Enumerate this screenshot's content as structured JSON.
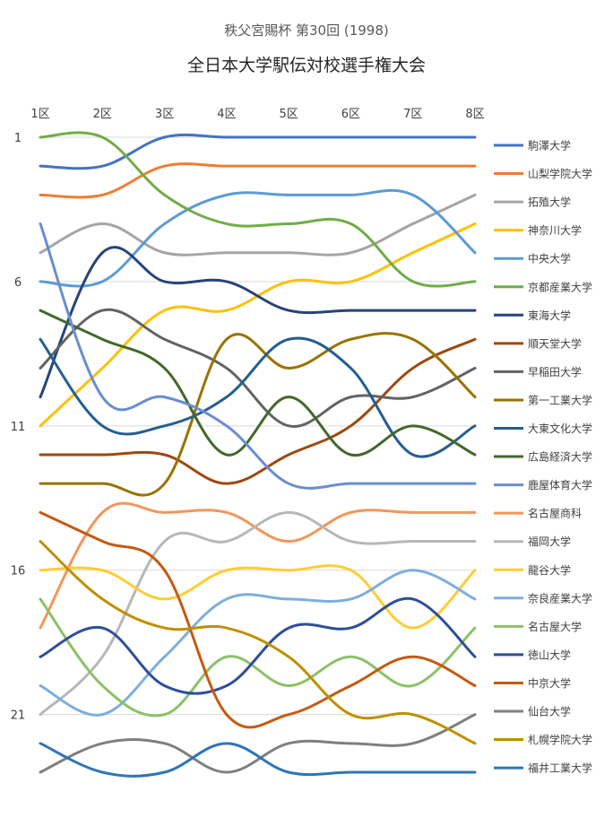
{
  "chart_data": {
    "type": "line",
    "subtitle": "秩父宮賜杯 第30回 (1998)",
    "title": "全日本大学駅伝対校選手権大会",
    "x": [
      "1区",
      "2区",
      "3区",
      "4区",
      "5区",
      "6区",
      "7区",
      "8区"
    ],
    "y_ticks": [
      "1",
      "6",
      "11",
      "16",
      "21"
    ],
    "y_reversed": true,
    "ylim": [
      1,
      23
    ],
    "legend_position": "right",
    "grid": true,
    "series": [
      {
        "name": "駒澤大学",
        "color": "#4472C4",
        "values": [
          2,
          2,
          1,
          1,
          1,
          1,
          1,
          1
        ]
      },
      {
        "name": "山梨学院大学",
        "color": "#ED7D31",
        "values": [
          3,
          3,
          2,
          2,
          2,
          2,
          2,
          2
        ]
      },
      {
        "name": "拓殖大学",
        "color": "#A5A5A5",
        "values": [
          5,
          4,
          5,
          5,
          5,
          5,
          4,
          3
        ]
      },
      {
        "name": "神奈川大学",
        "color": "#FFC000",
        "values": [
          11,
          9,
          7,
          7,
          6,
          6,
          5,
          4
        ]
      },
      {
        "name": "中央大学",
        "color": "#5B9BD5",
        "values": [
          6,
          6,
          4,
          3,
          3,
          3,
          3,
          5
        ]
      },
      {
        "name": "京都産業大学",
        "color": "#70AD47",
        "values": [
          1,
          1,
          3,
          4,
          4,
          4,
          6,
          6
        ]
      },
      {
        "name": "東海大学",
        "color": "#264478",
        "values": [
          10,
          5,
          6,
          6,
          7,
          7,
          7,
          7
        ]
      },
      {
        "name": "順天堂大学",
        "color": "#9E480E",
        "values": [
          12,
          12,
          12,
          13,
          12,
          11,
          9,
          8
        ]
      },
      {
        "name": "早稲田大学",
        "color": "#636363",
        "values": [
          9,
          7,
          8,
          9,
          11,
          10,
          10,
          9
        ]
      },
      {
        "name": "第一工業大学",
        "color": "#997300",
        "values": [
          13,
          13,
          13,
          8,
          9,
          8,
          8,
          10
        ]
      },
      {
        "name": "大東文化大学",
        "color": "#255E91",
        "values": [
          8,
          11,
          11,
          10,
          8,
          9,
          12,
          11
        ]
      },
      {
        "name": "広島経済大学",
        "color": "#43682B",
        "values": [
          7,
          8,
          9,
          12,
          10,
          12,
          11,
          12
        ]
      },
      {
        "name": "鹿屋体育大学",
        "color": "#698ED0",
        "values": [
          4,
          10,
          10,
          11,
          13,
          13,
          13,
          13
        ]
      },
      {
        "name": "名古屋商科",
        "color": "#F1975A",
        "values": [
          18,
          14,
          14,
          14,
          15,
          14,
          14,
          14
        ]
      },
      {
        "name": "福岡大学",
        "color": "#B7B7B7",
        "values": [
          21,
          19,
          15,
          15,
          14,
          15,
          15,
          15
        ]
      },
      {
        "name": "龍谷大学",
        "color": "#FFCD33",
        "values": [
          16,
          16,
          17,
          16,
          16,
          16,
          18,
          16
        ]
      },
      {
        "name": "奈良産業大学",
        "color": "#7CAFDD",
        "values": [
          20,
          21,
          19,
          17,
          17,
          17,
          16,
          17
        ]
      },
      {
        "name": "名古屋大学",
        "color": "#8CC168",
        "values": [
          17,
          20,
          21,
          19,
          20,
          19,
          20,
          18
        ]
      },
      {
        "name": "徳山大学",
        "color": "#2E4E9A",
        "values": [
          19,
          18,
          20,
          20,
          18,
          18,
          17,
          19
        ]
      },
      {
        "name": "中京大学",
        "color": "#C55A11",
        "values": [
          14,
          15,
          16,
          21,
          21,
          20,
          19,
          20
        ]
      },
      {
        "name": "仙台大学",
        "color": "#7F7F7F",
        "values": [
          23,
          22,
          22,
          23,
          22,
          22,
          22,
          21
        ]
      },
      {
        "name": "札幌学院大学",
        "color": "#BF9000",
        "values": [
          15,
          17,
          18,
          18,
          19,
          21,
          21,
          22
        ]
      },
      {
        "name": "福井工業大学",
        "color": "#2E75B6",
        "values": [
          22,
          23,
          23,
          22,
          23,
          23,
          23,
          23
        ]
      }
    ]
  }
}
